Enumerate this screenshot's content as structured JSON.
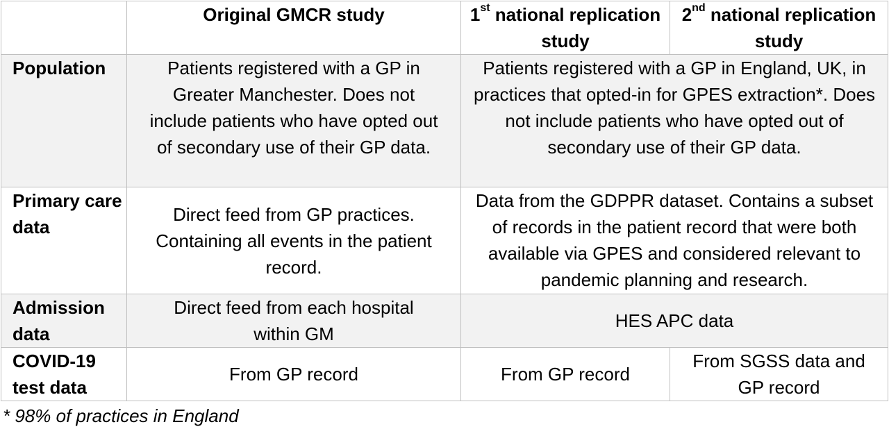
{
  "header": {
    "col1": "Original GMCR study",
    "col2_ordinal": "1",
    "col2_sup": "st",
    "col2_rest": " national replication study",
    "col3_ordinal": "2",
    "col3_sup": "nd",
    "col3_rest": " national replication study"
  },
  "rows": {
    "population": {
      "label": "Population",
      "original": "Patients registered with a GP in Greater Manchester. Does not include patients who have opted out of secondary use of their GP data.",
      "national": "Patients registered with a GP in England, UK, in practices that opted-in for GPES extraction*. Does not include patients who have opted out of secondary use of their GP data."
    },
    "primary_care": {
      "label": "Primary care data",
      "original": "Direct feed from GP practices. Containing all events in the patient record.",
      "national": "Data from the GDPPR dataset. Contains a subset of records in the patient record that were both available via GPES and considered relevant to pandemic planning and research."
    },
    "admission": {
      "label": "Admission data",
      "original": "Direct feed from each hospital within GM",
      "national": "HES APC data"
    },
    "covid_test": {
      "label": "COVID-19 test data",
      "original": "From GP record",
      "first_national": "From GP record",
      "second_national": "From SGSS data and GP record"
    }
  },
  "footnote": "* 98% of practices in England"
}
